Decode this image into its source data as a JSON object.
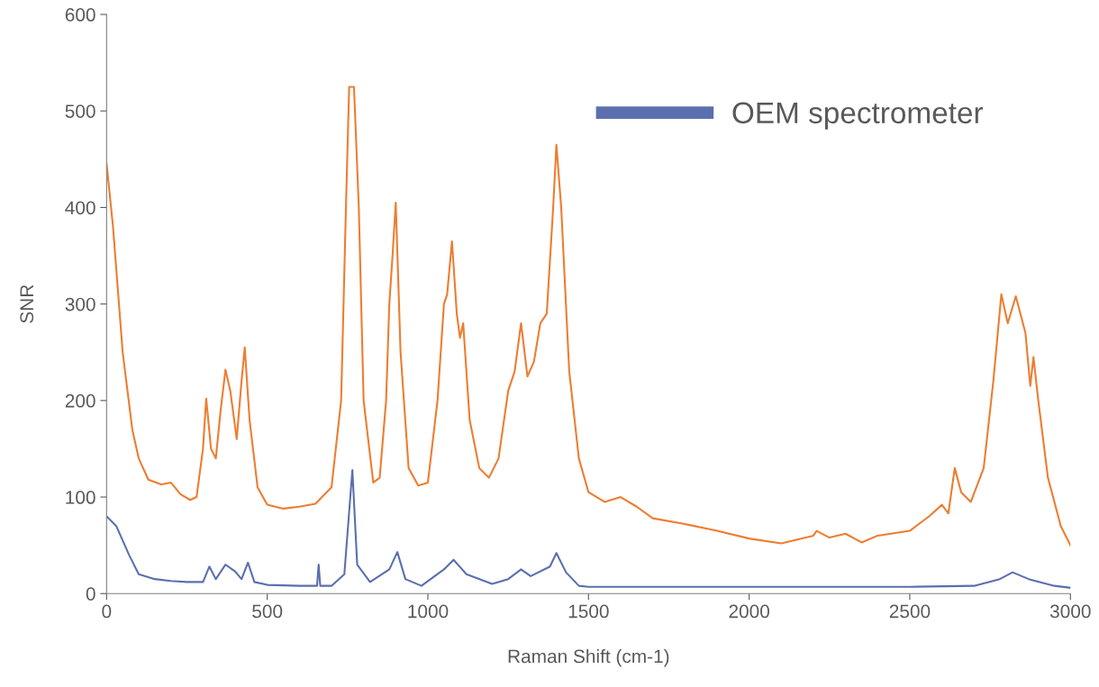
{
  "chart_data": {
    "type": "line",
    "xlabel": "Raman Shift (cm-1)",
    "ylabel": "SNR",
    "xlim": [
      0,
      3000
    ],
    "ylim": [
      0,
      600
    ],
    "xticks": [
      0,
      500,
      1000,
      1500,
      2000,
      2500,
      3000
    ],
    "yticks": [
      0,
      100,
      200,
      300,
      400,
      500,
      600
    ],
    "grid": false,
    "legend": "top right",
    "marker": "none",
    "line_style": "solid",
    "series": [
      {
        "color": "#ed7d31",
        "x": [
          0,
          20,
          50,
          80,
          100,
          130,
          170,
          200,
          230,
          260,
          280,
          300,
          310,
          325,
          340,
          355,
          370,
          385,
          405,
          420,
          430,
          445,
          470,
          500,
          550,
          600,
          650,
          700,
          730,
          745,
          755,
          770,
          785,
          800,
          830,
          850,
          870,
          880,
          890,
          900,
          915,
          940,
          970,
          1000,
          1030,
          1050,
          1060,
          1075,
          1090,
          1100,
          1110,
          1130,
          1160,
          1190,
          1220,
          1250,
          1270,
          1290,
          1310,
          1330,
          1350,
          1370,
          1390,
          1400,
          1415,
          1440,
          1470,
          1500,
          1550,
          1600,
          1650,
          1700,
          1800,
          1900,
          2000,
          2100,
          2200,
          2210,
          2250,
          2300,
          2350,
          2400,
          2500,
          2560,
          2600,
          2620,
          2640,
          2660,
          2690,
          2730,
          2760,
          2785,
          2805,
          2830,
          2860,
          2875,
          2885,
          2900,
          2930,
          2970,
          3000
        ],
        "values": [
          445,
          380,
          250,
          170,
          140,
          118,
          113,
          115,
          103,
          97,
          100,
          150,
          202,
          150,
          140,
          190,
          232,
          210,
          160,
          220,
          255,
          180,
          110,
          92,
          88,
          90,
          93,
          110,
          200,
          400,
          525,
          525,
          400,
          200,
          115,
          120,
          200,
          300,
          350,
          405,
          250,
          130,
          112,
          115,
          200,
          300,
          310,
          365,
          290,
          265,
          280,
          180,
          130,
          120,
          140,
          210,
          230,
          280,
          225,
          240,
          280,
          290,
          400,
          465,
          400,
          230,
          140,
          105,
          95,
          100,
          90,
          78,
          72,
          65,
          57,
          52,
          60,
          65,
          58,
          62,
          53,
          60,
          65,
          80,
          92,
          83,
          130,
          105,
          95,
          130,
          220,
          310,
          280,
          308,
          270,
          215,
          245,
          200,
          120,
          70,
          50
        ]
      },
      {
        "name": "OEM spectrometer",
        "color": "#5b6fae",
        "x": [
          0,
          30,
          70,
          100,
          150,
          200,
          250,
          300,
          320,
          340,
          370,
          400,
          420,
          440,
          460,
          500,
          600,
          655,
          660,
          665,
          700,
          740,
          765,
          780,
          820,
          880,
          905,
          930,
          980,
          1050,
          1080,
          1120,
          1200,
          1250,
          1290,
          1320,
          1380,
          1400,
          1430,
          1470,
          1500,
          2000,
          2500,
          2700,
          2780,
          2820,
          2870,
          2950,
          3000
        ],
        "values": [
          80,
          70,
          40,
          20,
          15,
          13,
          12,
          12,
          28,
          15,
          30,
          23,
          15,
          32,
          12,
          9,
          8,
          8,
          30,
          8,
          8,
          20,
          128,
          30,
          12,
          25,
          43,
          15,
          8,
          25,
          35,
          20,
          10,
          15,
          25,
          18,
          28,
          42,
          22,
          8,
          7,
          7,
          7,
          8,
          15,
          22,
          15,
          8,
          6
        ]
      }
    ]
  }
}
